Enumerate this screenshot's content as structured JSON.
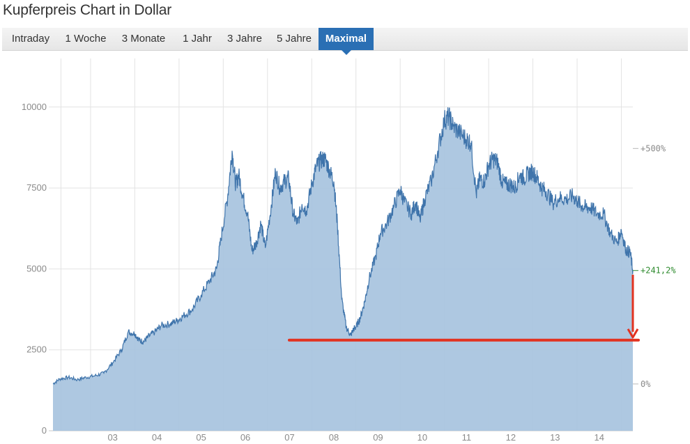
{
  "title": "Kupferpreis Chart in Dollar",
  "tabs": [
    {
      "label": "Intraday",
      "active": false
    },
    {
      "label": "1 Woche",
      "active": false
    },
    {
      "label": "3 Monate",
      "active": false
    },
    {
      "label": "1 Jahr",
      "active": false
    },
    {
      "label": "3 Jahre",
      "active": false
    },
    {
      "label": "5 Jahre",
      "active": false
    },
    {
      "label": "Maximal",
      "active": true
    }
  ],
  "colors": {
    "area_fill": "#a7c3de",
    "area_line": "#3f74ab",
    "grid": "#e3e3e3",
    "active_tab": "#2a6fb4",
    "annotation": "#e23220",
    "positive": "#2e8b2e"
  },
  "chart_data": {
    "type": "area",
    "title": "",
    "xlabel": "",
    "ylabel": "",
    "grid": true,
    "x_tick_labels": [
      "03",
      "04",
      "05",
      "06",
      "07",
      "08",
      "09",
      "10",
      "11",
      "12",
      "13",
      "14"
    ],
    "y_ticks": [
      0,
      2500,
      5000,
      7500,
      10000
    ],
    "ylim": [
      0,
      11500
    ],
    "xlim": [
      2002.15,
      2015.26
    ],
    "right_axis_labels": [
      {
        "label": "+500%",
        "value": 8720
      },
      {
        "label": "0%",
        "value": 1445
      }
    ],
    "current_change_label": "+241,2%",
    "current_value": 4950,
    "series": [
      {
        "x": [
          2002.15,
          2002.3,
          2002.5,
          2002.7,
          2002.9,
          2003.1,
          2003.3,
          2003.5,
          2003.7,
          2003.85,
          2004.0,
          2004.1,
          2004.2,
          2004.3,
          2004.45,
          2004.6,
          2004.8,
          2004.95,
          2005.1,
          2005.3,
          2005.5,
          2005.7,
          2005.85,
          2005.95,
          2006.1,
          2006.2,
          2006.28,
          2006.35,
          2006.45,
          2006.55,
          2006.65,
          2006.75,
          2006.85,
          2006.95,
          2007.08,
          2007.18,
          2007.28,
          2007.38,
          2007.48,
          2007.58,
          2007.68,
          2007.78,
          2007.88,
          2008.0,
          2008.1,
          2008.2,
          2008.3,
          2008.4,
          2008.5,
          2008.58,
          2008.68,
          2008.78,
          2008.88,
          2008.95,
          2009.0,
          2009.1,
          2009.2,
          2009.3,
          2009.45,
          2009.55,
          2009.7,
          2009.85,
          2010.0,
          2010.1,
          2010.25,
          2010.35,
          2010.45,
          2010.55,
          2010.7,
          2010.85,
          2011.0,
          2011.1,
          2011.2,
          2011.35,
          2011.5,
          2011.6,
          2011.72,
          2011.8,
          2011.9,
          2012.0,
          2012.1,
          2012.2,
          2012.3,
          2012.4,
          2012.5,
          2012.6,
          2012.7,
          2012.8,
          2012.9,
          2013.0,
          2013.1,
          2013.2,
          2013.3,
          2013.45,
          2013.6,
          2013.75,
          2013.9,
          2014.0,
          2014.1,
          2014.2,
          2014.3,
          2014.45,
          2014.6,
          2014.75,
          2014.9,
          2015.0,
          2015.1,
          2015.2,
          2015.26
        ],
        "values": [
          1450,
          1600,
          1650,
          1580,
          1650,
          1700,
          1780,
          2100,
          2500,
          3050,
          3000,
          2800,
          2750,
          2900,
          3050,
          3250,
          3300,
          3400,
          3550,
          3750,
          4200,
          4650,
          5000,
          5950,
          7250,
          8650,
          7600,
          7900,
          7200,
          6700,
          5550,
          5800,
          6400,
          5650,
          6900,
          8000,
          7500,
          7700,
          7800,
          6700,
          6400,
          7000,
          6800,
          7600,
          8150,
          8350,
          8400,
          8050,
          7700,
          6400,
          4050,
          3200,
          2950,
          3150,
          3200,
          3500,
          4000,
          4700,
          5400,
          6100,
          6400,
          6900,
          7450,
          7050,
          6700,
          7050,
          6500,
          7150,
          7700,
          8650,
          9600,
          9700,
          9400,
          9200,
          9000,
          8900,
          7300,
          7800,
          7700,
          8200,
          8400,
          8300,
          7700,
          7600,
          7600,
          7500,
          7900,
          7800,
          7950,
          8000,
          7800,
          7500,
          7400,
          7050,
          7200,
          7150,
          7250,
          7100,
          6950,
          6900,
          6900,
          6700,
          6700,
          6100,
          5800,
          6200,
          5600,
          5500,
          4950
        ]
      }
    ]
  }
}
